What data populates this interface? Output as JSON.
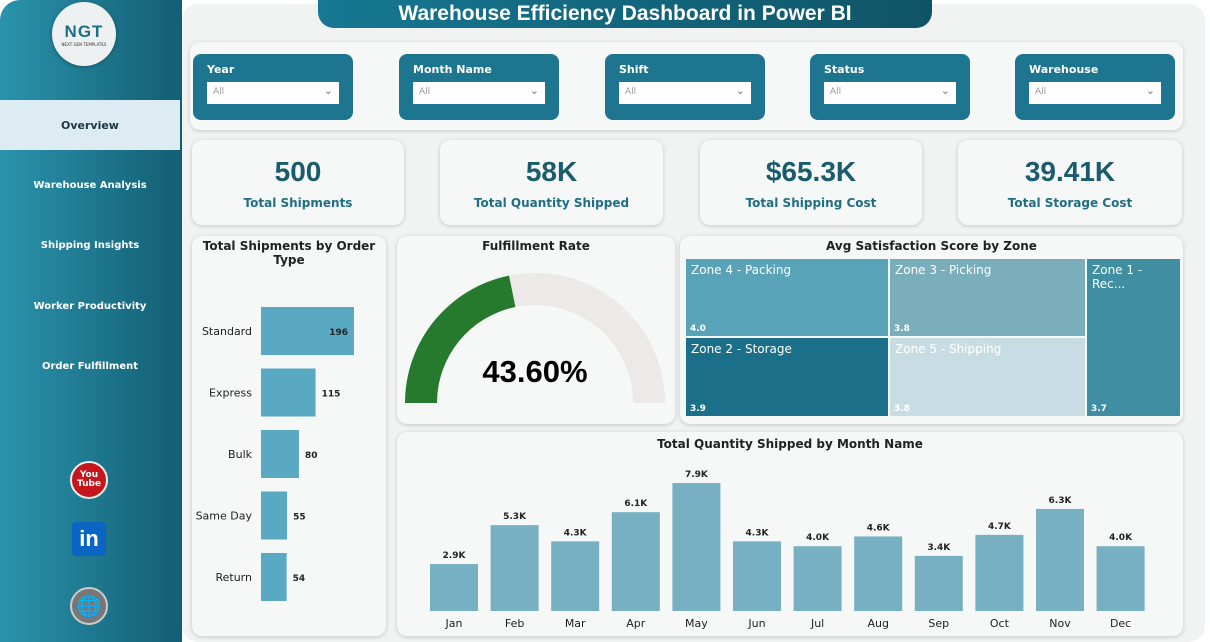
{
  "title": "Warehouse Efficiency Dashboard in Power BI",
  "logo": {
    "text": "NGT",
    "subtitle": "NEXT GEN TEMPLATES"
  },
  "nav": [
    "Overview",
    "Warehouse Analysis",
    "Shipping Insights",
    "Worker Productivity",
    "Order Fulfillment"
  ],
  "social": {
    "youtube": "You Tube",
    "linkedin": "in"
  },
  "filters": [
    {
      "label": "Year",
      "value": "All"
    },
    {
      "label": "Month Name",
      "value": "All"
    },
    {
      "label": "Shift",
      "value": "All"
    },
    {
      "label": "Status",
      "value": "All"
    },
    {
      "label": "Warehouse",
      "value": "All"
    }
  ],
  "kpis": [
    {
      "value": "500",
      "label": "Total Shipments"
    },
    {
      "value": "58K",
      "label": "Total Quantity Shipped"
    },
    {
      "value": "$65.3K",
      "label": "Total Shipping Cost"
    },
    {
      "value": "39.41K",
      "label": "Total Storage Cost"
    }
  ],
  "gauge": {
    "title": "Fulfillment Rate",
    "value": 43.6,
    "label": "43.60%",
    "color": "#267a2e"
  },
  "treemap": {
    "title": "Avg Satisfaction Score by Zone",
    "zones": [
      {
        "name": "Zone 4 - Packing",
        "value": "4.0",
        "color": "#58a3b8"
      },
      {
        "name": "Zone 3 - Picking",
        "value": "3.8",
        "color": "#7aaebb"
      },
      {
        "name": "Zone 1 - Rec...",
        "value": "3.7",
        "color": "#3f8ea2"
      },
      {
        "name": "Zone 2 - Storage",
        "value": "3.9",
        "color": "#1b6f88"
      },
      {
        "name": "Zone 5 - Shipping",
        "value": "3.8",
        "color": "#c8dde3"
      }
    ]
  },
  "chart_data": [
    {
      "type": "bar",
      "orientation": "horizontal",
      "title": "Total Shipments by Order Type",
      "categories": [
        "Standard",
        "Express",
        "Bulk",
        "Same Day",
        "Return"
      ],
      "values": [
        196,
        115,
        80,
        55,
        54
      ],
      "data_labels": [
        "196",
        "115",
        "80",
        "55",
        "54"
      ]
    },
    {
      "type": "bar",
      "title": "Total Quantity Shipped by Month Name",
      "categories": [
        "Jan",
        "Feb",
        "Mar",
        "Apr",
        "May",
        "Jun",
        "Jul",
        "Aug",
        "Sep",
        "Oct",
        "Nov",
        "Dec"
      ],
      "values": [
        2.9,
        5.3,
        4.3,
        6.1,
        7.9,
        4.3,
        4.0,
        4.6,
        3.4,
        4.7,
        6.3,
        4.0
      ],
      "data_labels": [
        "2.9K",
        "5.3K",
        "4.3K",
        "6.1K",
        "7.9K",
        "4.3K",
        "4.0K",
        "4.6K",
        "3.4K",
        "4.7K",
        "6.3K",
        "4.0K"
      ],
      "unit": "K"
    }
  ]
}
